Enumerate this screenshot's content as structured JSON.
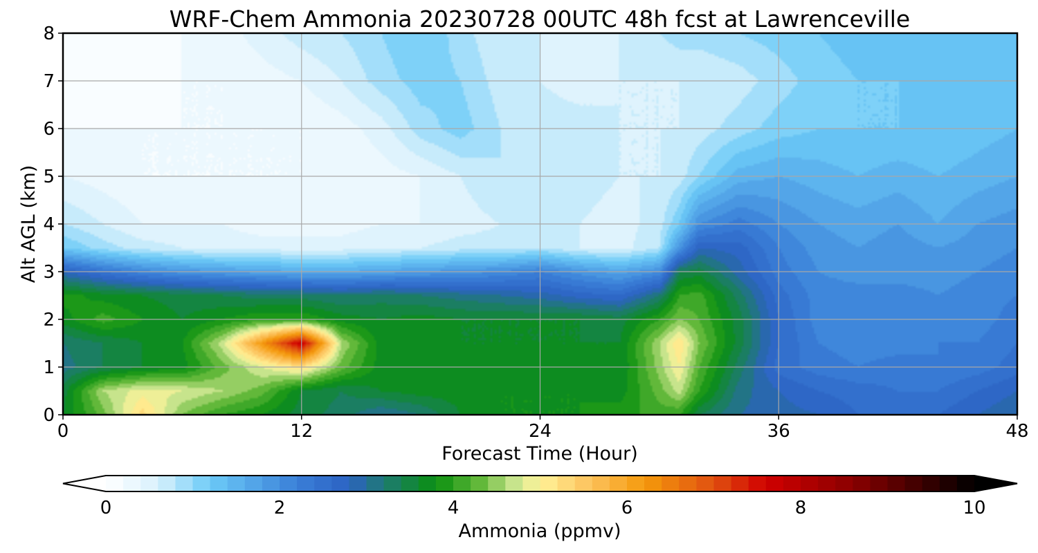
{
  "chart_data": {
    "type": "heatmap",
    "title": "WRF-Chem Ammonia  20230728 00UTC 48h fcst at Lawrenceville",
    "xlabel": "Forecast Time (Hour)",
    "ylabel": "Alt AGL (km)",
    "xlim": [
      0,
      48
    ],
    "ylim": [
      0,
      8
    ],
    "x_ticks": [
      0,
      12,
      24,
      36,
      48
    ],
    "y_ticks": [
      0,
      1,
      2,
      3,
      4,
      5,
      6,
      7,
      8
    ],
    "grid": true,
    "colorbar": {
      "label": "Ammonia  (ppmv)",
      "min": 0,
      "max": 10,
      "step": 0.2,
      "ticks": [
        0,
        2,
        4,
        6,
        8,
        10
      ],
      "extend": "both",
      "stops": [
        {
          "v": 0.0,
          "c": "#ffffff"
        },
        {
          "v": 0.6,
          "c": "#d9f1fc"
        },
        {
          "v": 1.2,
          "c": "#6ccbf7"
        },
        {
          "v": 2.2,
          "c": "#3a7fd8"
        },
        {
          "v": 2.8,
          "c": "#2c62c2"
        },
        {
          "v": 3.2,
          "c": "#1f7a72"
        },
        {
          "v": 3.8,
          "c": "#0a9010"
        },
        {
          "v": 4.3,
          "c": "#62b83a"
        },
        {
          "v": 4.75,
          "c": "#d4ea96"
        },
        {
          "v": 5.0,
          "c": "#fff298"
        },
        {
          "v": 5.6,
          "c": "#fcc05a"
        },
        {
          "v": 6.2,
          "c": "#f59a0c"
        },
        {
          "v": 7.0,
          "c": "#e05010"
        },
        {
          "v": 7.6,
          "c": "#d00000"
        },
        {
          "v": 8.6,
          "c": "#8a0000"
        },
        {
          "v": 10.0,
          "c": "#000000"
        }
      ]
    },
    "values": {
      "x_hours": [
        0,
        2,
        4,
        6,
        8,
        10,
        12,
        14,
        16,
        18,
        20,
        22,
        24,
        26,
        28,
        30,
        31,
        32,
        34,
        36,
        38,
        40,
        42,
        44,
        46,
        48
      ],
      "z_km": [
        0,
        0.5,
        1.0,
        1.5,
        2.0,
        2.5,
        3.0,
        3.5,
        4.0,
        5.0,
        6.0,
        7.0,
        8.0
      ],
      "ppmv": [
        [
          3.6,
          4.3,
          5.3,
          4.4,
          4.0,
          3.8,
          3.5,
          3.3,
          3.0,
          3.2,
          3.6,
          3.8,
          3.8,
          3.8,
          3.9,
          4.1,
          4.0,
          3.4,
          3.0,
          2.9,
          2.8,
          2.6,
          2.5,
          2.6,
          2.8,
          3.0
        ],
        [
          3.5,
          4.6,
          4.9,
          4.8,
          4.6,
          4.3,
          3.6,
          3.4,
          3.6,
          3.7,
          3.7,
          3.8,
          3.8,
          3.8,
          3.7,
          4.3,
          4.7,
          4.0,
          3.1,
          2.8,
          2.6,
          2.5,
          2.4,
          2.4,
          2.6,
          2.8
        ],
        [
          3.1,
          3.4,
          3.6,
          3.7,
          4.3,
          4.8,
          5.2,
          4.3,
          3.7,
          3.7,
          3.7,
          3.7,
          3.7,
          3.7,
          3.6,
          4.5,
          5.0,
          4.2,
          3.3,
          2.5,
          2.3,
          2.2,
          2.3,
          2.2,
          2.3,
          2.5
        ],
        [
          3.2,
          3.4,
          3.6,
          3.8,
          4.7,
          6.2,
          7.8,
          4.6,
          3.7,
          3.7,
          3.6,
          3.6,
          3.6,
          3.6,
          3.6,
          4.6,
          5.2,
          4.4,
          3.5,
          2.6,
          2.2,
          2.1,
          2.1,
          2.2,
          2.2,
          2.4
        ],
        [
          3.7,
          4.1,
          3.8,
          3.6,
          3.8,
          4.0,
          4.0,
          3.7,
          3.6,
          3.7,
          3.6,
          3.6,
          3.6,
          3.6,
          3.5,
          4.0,
          4.4,
          4.2,
          3.5,
          2.6,
          2.1,
          2.0,
          2.1,
          2.0,
          2.1,
          2.3
        ],
        [
          3.9,
          3.7,
          3.6,
          3.5,
          3.4,
          3.3,
          3.3,
          3.2,
          3.3,
          3.2,
          3.1,
          3.0,
          2.9,
          2.7,
          2.6,
          3.2,
          4.0,
          4.1,
          3.3,
          2.5,
          2.1,
          2.1,
          2.1,
          2.0,
          2.1,
          2.2
        ],
        [
          2.8,
          2.4,
          2.1,
          1.9,
          1.8,
          1.7,
          1.6,
          1.6,
          1.7,
          1.8,
          1.9,
          2.0,
          2.2,
          1.9,
          1.7,
          2.0,
          3.4,
          3.5,
          2.9,
          2.3,
          2.0,
          1.9,
          1.9,
          1.9,
          2.0,
          2.1
        ],
        [
          1.2,
          0.9,
          0.7,
          0.6,
          0.5,
          0.5,
          0.5,
          0.5,
          0.6,
          0.6,
          0.7,
          0.7,
          0.8,
          0.6,
          0.5,
          0.8,
          1.9,
          2.8,
          2.7,
          2.2,
          1.9,
          1.8,
          1.9,
          1.8,
          1.9,
          2.0
        ],
        [
          0.8,
          0.6,
          0.4,
          0.4,
          0.4,
          0.3,
          0.3,
          0.3,
          0.4,
          0.4,
          0.5,
          0.6,
          0.7,
          0.6,
          0.5,
          0.7,
          1.2,
          2.0,
          2.3,
          2.0,
          1.8,
          1.7,
          1.8,
          1.6,
          1.8,
          1.9
        ],
        [
          0.4,
          0.3,
          0.2,
          0.2,
          0.2,
          0.2,
          0.2,
          0.2,
          0.3,
          0.4,
          0.6,
          0.8,
          0.8,
          0.7,
          0.6,
          0.6,
          0.7,
          1.0,
          1.5,
          1.6,
          1.5,
          1.4,
          1.5,
          1.4,
          1.5,
          1.6
        ],
        [
          0.2,
          0.2,
          0.2,
          0.2,
          0.2,
          0.2,
          0.2,
          0.3,
          0.5,
          0.9,
          1.1,
          0.8,
          0.7,
          0.7,
          0.6,
          0.6,
          0.6,
          0.7,
          0.9,
          1.1,
          1.2,
          1.2,
          1.2,
          1.2,
          1.3,
          1.4
        ],
        [
          0.1,
          0.1,
          0.1,
          0.2,
          0.2,
          0.3,
          0.4,
          0.6,
          0.9,
          1.1,
          1.0,
          0.7,
          0.6,
          0.5,
          0.6,
          0.6,
          0.6,
          0.6,
          0.7,
          0.9,
          1.1,
          1.2,
          1.2,
          1.3,
          1.3,
          1.4
        ],
        [
          0.1,
          0.1,
          0.1,
          0.2,
          0.3,
          0.5,
          0.7,
          0.8,
          1.0,
          1.2,
          0.9,
          0.6,
          0.6,
          0.5,
          0.6,
          0.8,
          0.9,
          0.9,
          1.0,
          1.1,
          1.2,
          1.3,
          1.4,
          1.4,
          1.4,
          1.4
        ]
      ]
    }
  }
}
